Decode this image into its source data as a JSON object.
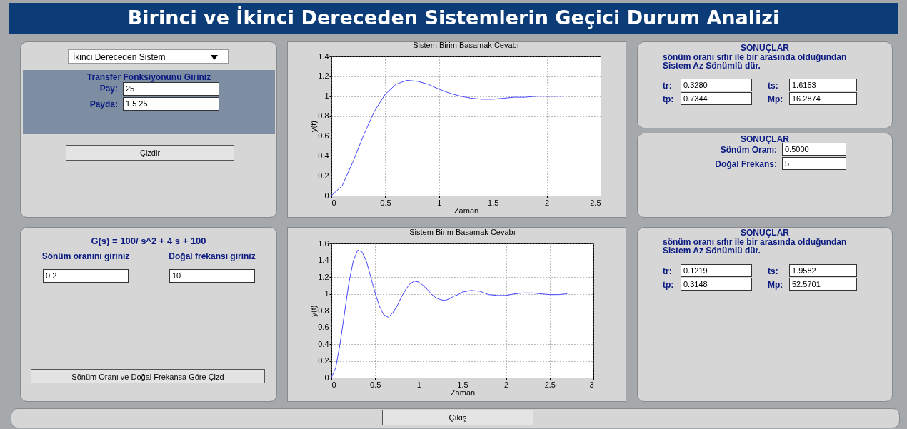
{
  "chart_data": [
    {
      "type": "other",
      "title": "Birinci ve İkinci Dereceden Sistemlerin Geçici Durum Analizi",
      "annotations": [
        "İkinci Dereceden Sistem",
        "Transfer Fonksiyonunu Giriniz",
        "Pay:",
        "25",
        "Payda:",
        "1 5 25",
        "Çizdir"
      ]
    },
    {
      "type": "line",
      "title": "Sistem Birim Basamak Cevabı",
      "xlabel": "Zaman",
      "ylabel": "y(t)",
      "color": "#4646ff",
      "grid": true,
      "x": [
        0,
        0.1,
        0.2,
        0.3,
        0.4,
        0.5,
        0.6,
        0.7,
        0.8,
        0.9,
        1.0,
        1.1,
        1.2,
        1.3,
        1.4,
        1.5,
        1.6,
        1.7,
        1.8,
        1.9,
        2.0,
        2.15
      ],
      "values": [
        0,
        0.1,
        0.34,
        0.61,
        0.85,
        1.02,
        1.12,
        1.16,
        1.15,
        1.12,
        1.07,
        1.03,
        1.0,
        0.98,
        0.97,
        0.97,
        0.98,
        0.99,
        0.99,
        1.0,
        1.0,
        1.0
      ],
      "xlim": [
        0,
        2.5
      ],
      "ylim": [
        0,
        1.4
      ],
      "xticks": [
        0,
        0.5,
        1,
        1.5,
        2,
        2.5
      ],
      "yticks": [
        0,
        0.2,
        0.4,
        0.6,
        0.8,
        1,
        1.2,
        1.4
      ]
    },
    {
      "type": "other",
      "annotations": [
        "SONUÇLAR",
        "sönüm oranı sıfır ile bir arasında olduğundan Sistem Az Sönümlü dür.",
        "tr:",
        "0.3280",
        "ts:",
        "1.6153",
        "tp:",
        "0.7344",
        "Mp:",
        "16.2874"
      ]
    },
    {
      "type": "other",
      "annotations": [
        "SONUÇLAR",
        "Sönüm Oranı:",
        "0.5000",
        "Doğal Frekans:",
        "5"
      ]
    },
    {
      "type": "other",
      "annotations": [
        "G(s) = 100/ s^2 + 4 s + 100",
        "Sönüm oranını giriniz",
        "0.2",
        "Doğal frekansı giriniz",
        "10",
        "Sönüm Oranı ve Doğal Frekansa Göre Çizd"
      ]
    },
    {
      "type": "line",
      "title": "Sistem Birim Basamak Cevabı",
      "xlabel": "Zaman",
      "ylabel": "y(t)",
      "color": "#4646ff",
      "grid": true,
      "x": [
        0,
        0.05,
        0.1,
        0.15,
        0.2,
        0.25,
        0.3,
        0.35,
        0.4,
        0.45,
        0.5,
        0.55,
        0.6,
        0.65,
        0.7,
        0.75,
        0.8,
        0.85,
        0.9,
        0.95,
        1.0,
        1.05,
        1.1,
        1.15,
        1.2,
        1.25,
        1.3,
        1.35,
        1.4,
        1.45,
        1.5,
        1.6,
        1.7,
        1.8,
        1.9,
        2.0,
        2.1,
        2.2,
        2.3,
        2.4,
        2.5,
        2.6,
        2.7
      ],
      "values": [
        0,
        0.12,
        0.41,
        0.77,
        1.13,
        1.39,
        1.52,
        1.5,
        1.39,
        1.2,
        1.01,
        0.85,
        0.75,
        0.72,
        0.77,
        0.85,
        0.96,
        1.05,
        1.12,
        1.15,
        1.14,
        1.1,
        1.05,
        0.99,
        0.95,
        0.93,
        0.92,
        0.94,
        0.97,
        0.99,
        1.02,
        1.04,
        1.03,
        0.99,
        0.98,
        0.98,
        1.0,
        1.01,
        1.01,
        1.0,
        0.99,
        0.99,
        1.0
      ],
      "xlim": [
        0,
        3
      ],
      "ylim": [
        0,
        1.6
      ],
      "xticks": [
        0,
        0.5,
        1,
        1.5,
        2,
        2.5,
        3
      ],
      "yticks": [
        0,
        0.2,
        0.4,
        0.6,
        0.8,
        1,
        1.2,
        1.4,
        1.6
      ]
    },
    {
      "type": "other",
      "annotations": [
        "SONUÇLAR",
        "sönüm oranı sıfır ile bir arasında olduğundan Sistem Az Sönümlü dür.",
        "tr:",
        "0.1219",
        "ts:",
        "1.9582",
        "tp:",
        "0.3148",
        "Mp:",
        "52.5701"
      ]
    },
    {
      "type": "other",
      "annotations": [
        "Çıkış"
      ]
    }
  ]
}
